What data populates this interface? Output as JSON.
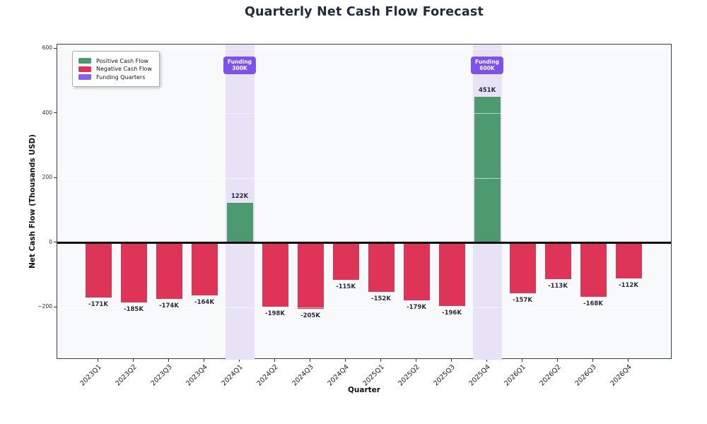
{
  "chart_data": {
    "type": "bar",
    "title": "Quarterly Net Cash Flow Forecast",
    "xlabel": "Quarter",
    "ylabel": "Net Cash Flow (Thousands USD)",
    "categories": [
      "2023Q1",
      "2023Q2",
      "2023Q3",
      "2023Q4",
      "2024Q1",
      "2024Q2",
      "2024Q3",
      "2024Q4",
      "2025Q1",
      "2025Q2",
      "2025Q3",
      "2025Q4",
      "2026Q1",
      "2026Q2",
      "2026Q3",
      "2026Q4"
    ],
    "values": [
      -171,
      -185,
      -174,
      -164,
      122,
      -198,
      -205,
      -115,
      -152,
      -179,
      -196,
      451,
      -157,
      -113,
      -168,
      -112
    ],
    "bar_labels": [
      "-171K",
      "-185K",
      "-174K",
      "-164K",
      "122K",
      "-198K",
      "-205K",
      "-115K",
      "-152K",
      "-179K",
      "-196K",
      "451K",
      "-157K",
      "-113K",
      "-168K",
      "-112K"
    ],
    "yticks": [
      600,
      400,
      200,
      0,
      -200
    ],
    "ytick_labels": [
      "600",
      "400",
      "200",
      "0",
      "−200"
    ],
    "ylim": [
      -363,
      613
    ],
    "grid": "horizontal",
    "zero_line": true,
    "legend": {
      "position": "upper-left",
      "entries": [
        {
          "label": "Positive Cash Flow",
          "color": "#4d9a70"
        },
        {
          "label": "Negative Cash Flow",
          "color": "#dd3458"
        },
        {
          "label": "Funding Quarters",
          "color": "#8b5cf0"
        }
      ]
    },
    "funding_quarters": [
      {
        "category": "2024Q1",
        "badge_lines": [
          "Funding",
          "300K"
        ]
      },
      {
        "category": "2025Q4",
        "badge_lines": [
          "Funding",
          "600K"
        ]
      }
    ],
    "colors": {
      "positive": "#4d9a70",
      "negative": "#dd3458",
      "funding_band": "#e8e2f7",
      "badge_bg": "#7c52e8",
      "badge_text": "#ffffff",
      "plot_bg": "#f8f9fb",
      "grid": "rgba(255,255,255,0.6)",
      "zero_line": "#0a0a0a",
      "spine": "#3a3f44",
      "title_text": "#1f2a3a",
      "tick_text": "#2b2b2b",
      "bar_label_text": "#2b2b3b"
    }
  }
}
